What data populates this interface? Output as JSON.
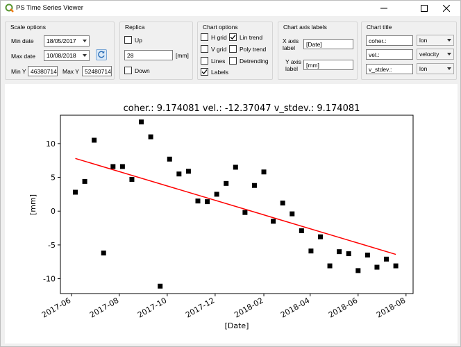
{
  "window": {
    "title": "PS Time Series Viewer"
  },
  "scale_options": {
    "title": "Scale options",
    "min_date_label": "Min date",
    "min_date": "18/05/2017",
    "max_date_label": "Max date",
    "max_date": "10/08/2018",
    "min_y_label": "Min Y",
    "min_y": "46380714",
    "max_y_label": "Max Y",
    "max_y": "52480714"
  },
  "replica": {
    "title": "Replica",
    "up_label": "Up",
    "up_checked": false,
    "value": "28",
    "unit": "[mm]",
    "down_label": "Down",
    "down_checked": false
  },
  "chart_options": {
    "title": "Chart options",
    "hgrid_label": "H grid",
    "vgrid_label": "V grid",
    "lines_label": "Lines",
    "labels_label": "Labels",
    "lintrend_label": "Lin trend",
    "polytrend_label": "Poly trend",
    "detrending_label": "Detrending",
    "checked": {
      "hgrid": false,
      "vgrid": false,
      "lines": false,
      "labels": true,
      "lintrend": true,
      "polytrend": false,
      "detrending": false
    }
  },
  "axis_labels": {
    "title": "Chart axis labels",
    "x_label_line1": "X axis",
    "x_label_line2": "label",
    "x_value": "[Date]",
    "y_label_line1": "Y axis",
    "y_label_line2": "label",
    "y_value": "[mm]"
  },
  "chart_title": {
    "title": "Chart title",
    "row1_field": "coher.:",
    "row1_select": "lon",
    "row2_field": "vel.:",
    "row2_select": "velocity",
    "row3_field": "v_stdev.:",
    "row3_select": "lon"
  },
  "chart_data": {
    "type": "scatter",
    "title": "coher.: 9.174081 vel.: -12.37047 v_stdev.: 9.174081",
    "xlabel": "[Date]",
    "ylabel": "[mm]",
    "xlim": [
      "2017-05-18",
      "2018-08-10"
    ],
    "ylim": [
      -12.2,
      14.2
    ],
    "x_ticks": [
      "2017-06",
      "2017-08",
      "2017-10",
      "2017-12",
      "2018-02",
      "2018-04",
      "2018-06",
      "2018-08"
    ],
    "y_ticks": [
      10,
      5,
      0,
      -5,
      -10
    ],
    "series": [
      {
        "marker": "square",
        "color": "#000000",
        "x": [
          "2017-06-06",
          "2017-06-18",
          "2017-06-30",
          "2017-07-12",
          "2017-07-24",
          "2017-08-05",
          "2017-08-17",
          "2017-08-29",
          "2017-09-10",
          "2017-09-22",
          "2017-10-04",
          "2017-10-16",
          "2017-10-28",
          "2017-11-09",
          "2017-11-21",
          "2017-12-03",
          "2017-12-15",
          "2017-12-27",
          "2018-01-08",
          "2018-01-20",
          "2018-02-01",
          "2018-02-13",
          "2018-02-25",
          "2018-03-09",
          "2018-03-21",
          "2018-04-02",
          "2018-04-14",
          "2018-04-26",
          "2018-05-08",
          "2018-05-20",
          "2018-06-01",
          "2018-06-13",
          "2018-06-25",
          "2018-07-07",
          "2018-07-19"
        ],
        "y": [
          2.8,
          4.4,
          10.5,
          -6.2,
          6.6,
          6.6,
          4.7,
          13.2,
          11.0,
          -11.1,
          7.7,
          5.5,
          5.9,
          1.5,
          1.4,
          2.5,
          4.1,
          6.5,
          -0.2,
          3.8,
          5.8,
          -1.5,
          1.2,
          -0.4,
          -2.9,
          -5.9,
          -3.8,
          -8.1,
          -6.0,
          -6.3,
          -8.8,
          -6.5,
          -8.3,
          -7.1,
          -8.1
        ]
      }
    ],
    "trend": {
      "name": "Lin trend",
      "color": "#ff0000",
      "x": [
        "2017-06-06",
        "2018-07-19"
      ],
      "y": [
        7.8,
        -6.4
      ]
    }
  }
}
